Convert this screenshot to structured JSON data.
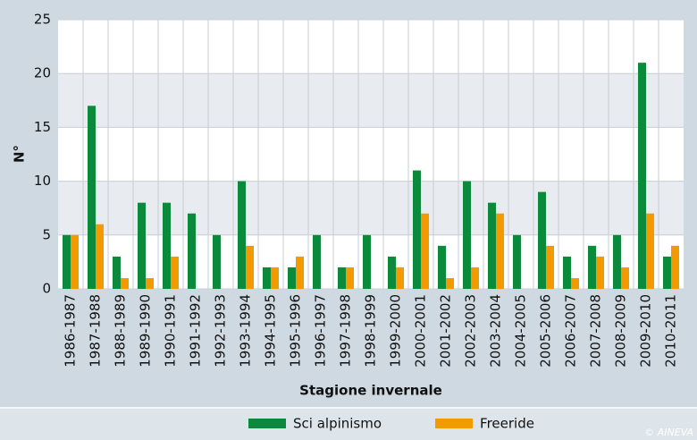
{
  "chart_data": {
    "type": "bar",
    "categories": [
      "1986-1987",
      "1987-1988",
      "1988-1989",
      "1989-1990",
      "1990-1991",
      "1991-1992",
      "1992-1993",
      "1993-1994",
      "1994-1995",
      "1995-1996",
      "1996-1997",
      "1997-1998",
      "1998-1999",
      "1999-2000",
      "2000-2001",
      "2001-2002",
      "2002-2003",
      "2003-2004",
      "2004-2005",
      "2005-2006",
      "2006-2007",
      "2007-2008",
      "2008-2009",
      "2009-2010",
      "2010-2011"
    ],
    "series": [
      {
        "name": "Sci alpinismo",
        "color": "#0b8a3c",
        "values": [
          5,
          17,
          3,
          8,
          8,
          7,
          5,
          10,
          2,
          2,
          5,
          2,
          5,
          3,
          11,
          4,
          10,
          8,
          5,
          9,
          3,
          4,
          5,
          21,
          3
        ]
      },
      {
        "name": "Freeride",
        "color": "#f39a00",
        "values": [
          5,
          6,
          1,
          1,
          3,
          0,
          0,
          4,
          2,
          3,
          0,
          2,
          0,
          2,
          7,
          1,
          2,
          7,
          0,
          4,
          1,
          3,
          2,
          7,
          4
        ]
      }
    ],
    "ylabel": "N°",
    "xlabel": "Stagione invernale",
    "ylim": [
      0,
      25
    ],
    "yticks": [
      0,
      5,
      10,
      15,
      20,
      25
    ],
    "grid": true,
    "legend": "bottom",
    "credit": "© AINEVA"
  }
}
